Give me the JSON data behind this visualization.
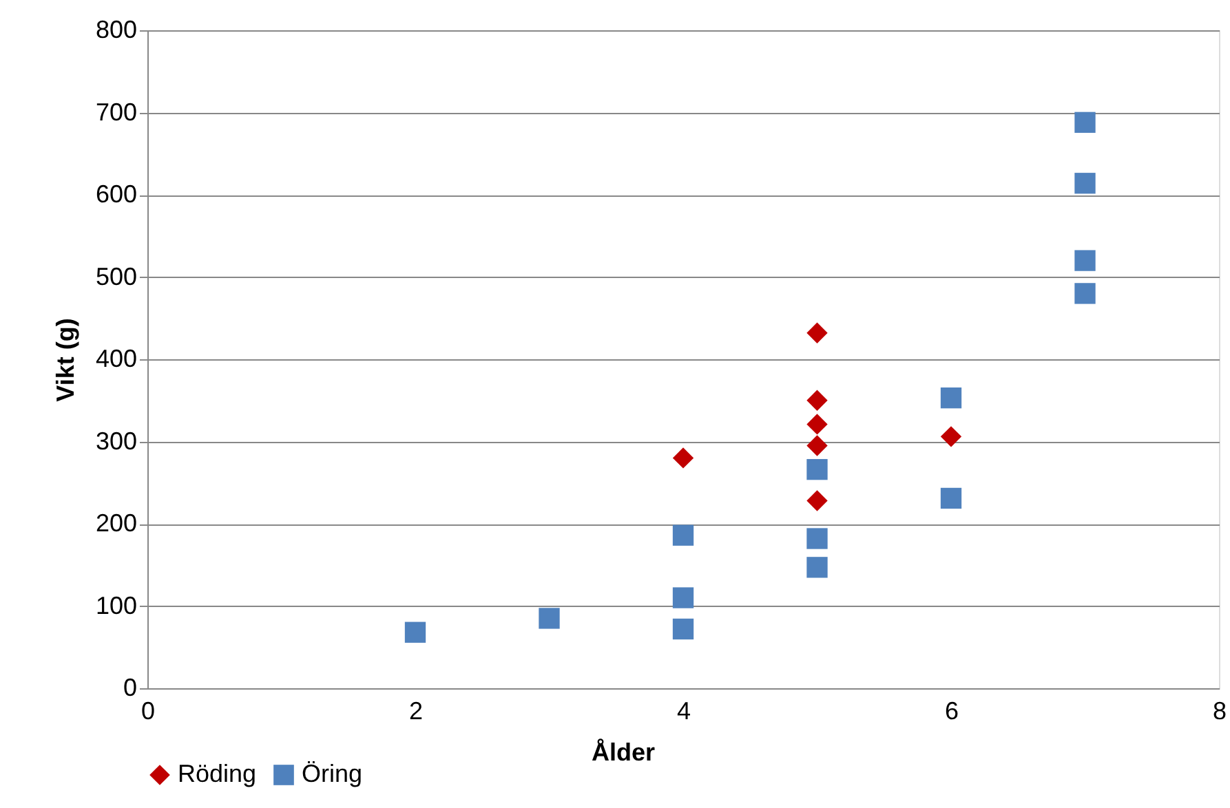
{
  "chart_data": {
    "type": "scatter",
    "xlabel": "Ålder",
    "ylabel": "Vikt (g)",
    "xlim": [
      0,
      8
    ],
    "xticks": [
      0,
      2,
      4,
      6,
      8
    ],
    "ylim": [
      0,
      800
    ],
    "yticks": [
      0,
      100,
      200,
      300,
      400,
      500,
      600,
      700,
      800
    ],
    "grid": "y",
    "legend": "bottom",
    "series": [
      {
        "name": "Röding",
        "color": "#c00000",
        "marker": "diamond",
        "x": [
          4,
          5,
          5,
          5,
          5,
          5,
          6
        ],
        "values": [
          280,
          432,
          350,
          321,
          295,
          228,
          306
        ]
      },
      {
        "name": "Öring",
        "color": "#4f81bd",
        "marker": "square",
        "x": [
          2,
          3,
          4,
          4,
          4,
          5,
          5,
          5,
          6,
          6,
          7,
          7,
          7,
          7
        ],
        "values": [
          68,
          85,
          72,
          110,
          186,
          147,
          182,
          266,
          353,
          231,
          480,
          520,
          614,
          688
        ]
      }
    ]
  }
}
